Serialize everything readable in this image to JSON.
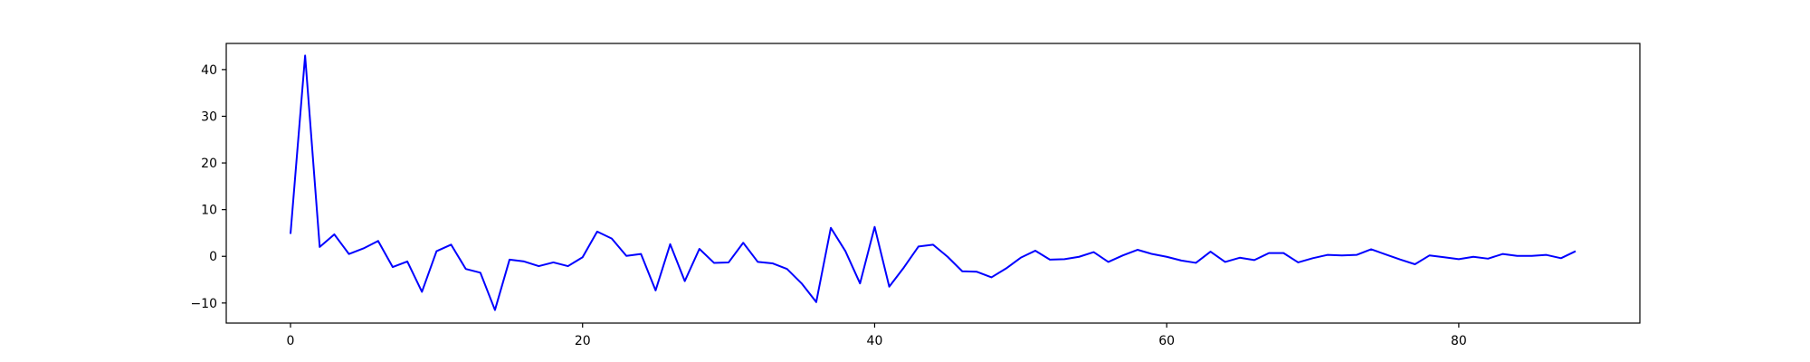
{
  "chart_data": {
    "type": "line",
    "title": "",
    "xlabel": "",
    "ylabel": "",
    "xlim": [
      -4.4,
      92.4
    ],
    "ylim": [
      -14.3,
      45.6
    ],
    "x_ticks": [
      0,
      20,
      40,
      60,
      80
    ],
    "y_ticks": [
      -10,
      0,
      10,
      20,
      30,
      40
    ],
    "x_tick_labels": [
      "0",
      "20",
      "40",
      "60",
      "80"
    ],
    "y_tick_labels": [
      "−10",
      "0",
      "10",
      "20",
      "30",
      "40"
    ],
    "grid": false,
    "legend": "none",
    "colors": {
      "series": "#0000ff",
      "axes": "#000000",
      "background": "#ffffff"
    },
    "series": [
      {
        "x": [
          0,
          1,
          2,
          3,
          4,
          5,
          6,
          7,
          8,
          9,
          10,
          11,
          12,
          13,
          14,
          15,
          16,
          17,
          18,
          19,
          20,
          21,
          22,
          23,
          24,
          25,
          26,
          27,
          28,
          29,
          30,
          31,
          32,
          33,
          34,
          35,
          36,
          37,
          38,
          39,
          40,
          41,
          42,
          43,
          44,
          45,
          46,
          47,
          48,
          49,
          50,
          51,
          52,
          53,
          54,
          55,
          56,
          57,
          58,
          59,
          60,
          61,
          62,
          63,
          64,
          65,
          66,
          67,
          68,
          69,
          70,
          71,
          72,
          73,
          74,
          75,
          76,
          77,
          78,
          79,
          80,
          81,
          82,
          83,
          84,
          85,
          86,
          87,
          88
        ],
        "values": [
          4.8,
          43.0,
          2.0,
          4.7,
          0.5,
          1.7,
          3.3,
          -2.3,
          -1.1,
          -7.6,
          1.1,
          2.5,
          -2.7,
          -3.5,
          -11.5,
          -0.7,
          -1.1,
          -2.1,
          -1.3,
          -2.1,
          -0.2,
          5.3,
          3.8,
          0.1,
          0.5,
          -7.3,
          2.6,
          -5.3,
          1.6,
          -1.4,
          -1.3,
          2.9,
          -1.2,
          -1.5,
          -2.7,
          -5.8,
          -9.8,
          6.1,
          1.1,
          -5.8,
          6.3,
          -6.5,
          -2.4,
          2.1,
          2.5,
          -0.1,
          -3.2,
          -3.3,
          -4.5,
          -2.6,
          -0.3,
          1.2,
          -0.7,
          -0.6,
          -0.1,
          0.9,
          -1.2,
          0.2,
          1.4,
          0.5,
          -0.1,
          -0.9,
          -1.4,
          1.0,
          -1.2,
          -0.3,
          -0.8,
          0.7,
          0.7,
          -1.3,
          -0.4,
          0.3,
          0.2,
          0.3,
          1.5,
          0.4,
          -0.7,
          -1.7,
          0.2,
          -0.2,
          -0.6,
          -0.1,
          -0.5,
          0.5,
          0.1,
          0.1,
          0.3,
          -0.4,
          1.1
        ]
      }
    ]
  }
}
